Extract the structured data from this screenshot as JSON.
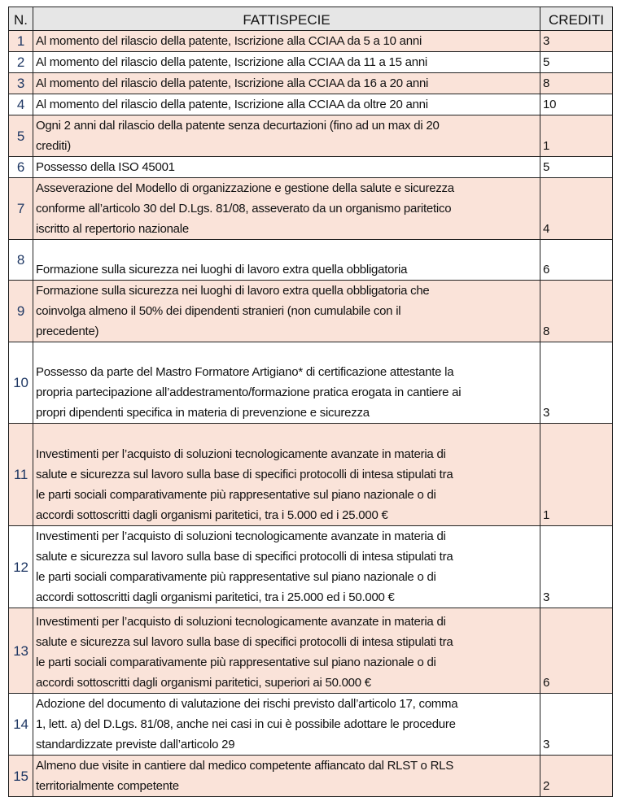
{
  "header": {
    "n": "N.",
    "fattispecie": "FATTISPECIE",
    "crediti": "CREDITI"
  },
  "colors": {
    "header_bg": "#e6e6e6",
    "alt_row_bg": "#fae3d9",
    "number_color": "#1f3864"
  },
  "rows": [
    {
      "n": "1",
      "lines": [
        "Al momento del rilascio della patente, Iscrizione alla CCIAA da 5 a 10 anni"
      ],
      "crediti": "3"
    },
    {
      "n": "2",
      "lines": [
        "Al momento del rilascio della patente, Iscrizione alla CCIAA da 11 a 15 anni"
      ],
      "crediti": "5"
    },
    {
      "n": "3",
      "lines": [
        "Al momento del rilascio della patente, Iscrizione alla CCIAA da 16 a 20 anni"
      ],
      "crediti": "8"
    },
    {
      "n": "4",
      "lines": [
        "Al momento del rilascio della patente, Iscrizione alla CCIAA da oltre 20 anni"
      ],
      "crediti": "10"
    },
    {
      "n": "5",
      "lines": [
        "Ogni 2 anni dal rilascio della patente senza decurtazioni (fino ad un max di 20",
        "crediti)"
      ],
      "crediti": "1"
    },
    {
      "n": "6",
      "lines": [
        "Possesso della ISO 45001"
      ],
      "crediti": "5"
    },
    {
      "n": "7",
      "lines": [
        "Asseverazione del Modello di organizzazione e gestione della salute e sicurezza",
        "conforme all’articolo 30 del D.Lgs. 81/08, asseverato da un organismo paritetico",
        "iscritto al repertorio nazionale"
      ],
      "crediti": "4"
    },
    {
      "n": "8",
      "lines": [
        "Formazione sulla sicurezza nei luoghi di lavoro extra quella obbligatoria"
      ],
      "crediti": "6"
    },
    {
      "n": "9",
      "lines": [
        "Formazione sulla sicurezza nei luoghi di lavoro extra quella obbligatoria che",
        "coinvolga almeno il 50% dei dipendenti stranieri (non cumulabile con il",
        "precedente)"
      ],
      "crediti": "8"
    },
    {
      "n": "10",
      "lines": [
        "Possesso da parte del Mastro Formatore Artigiano* di certificazione attestante la",
        "propria partecipazione all’addestramento/formazione pratica erogata in cantiere ai",
        "propri dipendenti specifica in materia di prevenzione e sicurezza"
      ],
      "crediti": "3"
    },
    {
      "n": "11",
      "lines": [
        "Investimenti per l’acquisto di soluzioni tecnologicamente avanzate in materia di",
        "salute e sicurezza sul lavoro sulla base di specifici protocolli di intesa stipulati tra",
        "le parti sociali comparativamente più rappresentative sul piano nazionale o di",
        "accordi sottoscritti dagli organismi paritetici, tra i 5.000 ed i 25.000 €"
      ],
      "crediti": "1"
    },
    {
      "n": "12",
      "lines": [
        "Investimenti per l’acquisto di soluzioni tecnologicamente avanzate in materia di",
        "salute e sicurezza sul lavoro sulla base di specifici protocolli di intesa stipulati tra",
        "le parti sociali comparativamente più rappresentative sul piano nazionale o di",
        "accordi sottoscritti dagli organismi paritetici, tra i 25.000 ed i 50.000 €"
      ],
      "crediti": "3"
    },
    {
      "n": "13",
      "lines": [
        "Investimenti per l’acquisto di soluzioni tecnologicamente avanzate in materia di",
        "salute e sicurezza sul lavoro sulla base di specifici protocolli di intesa stipulati tra",
        "le parti sociali comparativamente più rappresentative sul piano nazionale o di",
        "accordi sottoscritti dagli organismi paritetici, superiori ai 50.000 €"
      ],
      "crediti": "6"
    },
    {
      "n": "14",
      "lines": [
        "Adozione del documento di valutazione dei rischi previsto dall’articolo 17, comma",
        "1, lett. a) del D.Lgs. 81/08, anche nei casi in cui è possibile adottare le procedure",
        "standardizzate previste dall’articolo 29"
      ],
      "crediti": "3"
    },
    {
      "n": "15",
      "lines": [
        "Almeno due visite in cantiere dal medico competente affiancato dal RLST o RLS",
        "territorialmente competente"
      ],
      "crediti": "2"
    }
  ]
}
